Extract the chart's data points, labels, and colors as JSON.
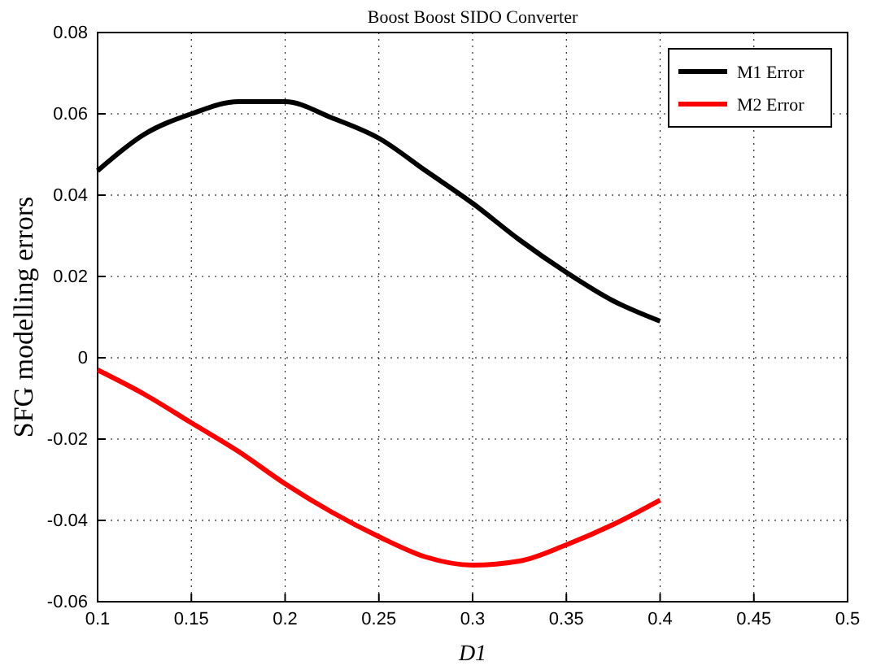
{
  "chart_data": {
    "type": "line",
    "title": "Boost Boost SIDO Converter",
    "xlabel": "D1",
    "ylabel": "SFG modelling errors",
    "x": [
      0.1,
      0.125,
      0.15,
      0.175,
      0.2,
      0.225,
      0.25,
      0.275,
      0.3,
      0.325,
      0.35,
      0.375,
      0.4
    ],
    "series": [
      {
        "name": "M1 Error",
        "color": "#000000",
        "values": [
          0.046,
          0.055,
          0.06,
          0.063,
          0.063,
          0.059,
          0.054,
          0.046,
          0.038,
          0.029,
          0.021,
          0.014,
          0.009
        ]
      },
      {
        "name": "M2 Error",
        "color": "#ff0000",
        "values": [
          -0.003,
          -0.009,
          -0.016,
          -0.023,
          -0.031,
          -0.038,
          -0.044,
          -0.049,
          -0.051,
          -0.05,
          -0.046,
          -0.041,
          -0.035
        ]
      }
    ],
    "xlim": [
      0.1,
      0.5
    ],
    "xticks": [
      0.1,
      0.15,
      0.2,
      0.25,
      0.3,
      0.35,
      0.4,
      0.45,
      0.5
    ],
    "ylim": [
      -0.06,
      0.08
    ],
    "yticks": [
      -0.06,
      -0.04,
      -0.02,
      0,
      0.02,
      0.04,
      0.06,
      0.08
    ],
    "grid": true,
    "legend": "top right",
    "line_style": "solid",
    "marker": "none"
  }
}
